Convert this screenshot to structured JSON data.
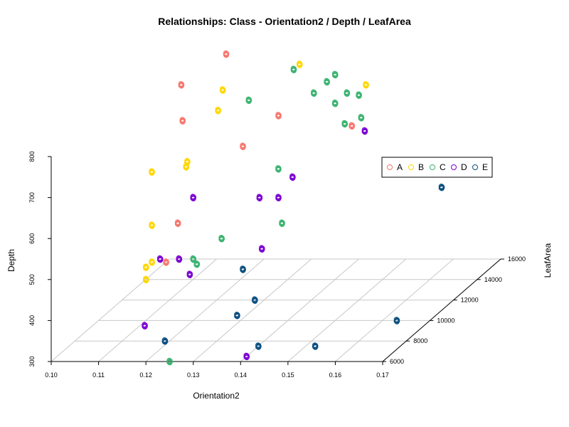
{
  "chart_data": {
    "type": "scatter",
    "title": "Relationships: Class - Orientation2 / Depth / LeafArea",
    "xlabel": "Orientation2",
    "ylabel": "Depth",
    "zlabel": "LeafArea",
    "xlim": [
      0.1,
      0.17
    ],
    "ylim": [
      300,
      800
    ],
    "zlim": [
      6000,
      16000
    ],
    "x_ticks": [
      "0.10",
      "0.11",
      "0.12",
      "0.13",
      "0.14",
      "0.15",
      "0.16",
      "0.17"
    ],
    "y_ticks": [
      "300",
      "400",
      "500",
      "600",
      "700",
      "800"
    ],
    "z_ticks": [
      "6000",
      "8000",
      "10000",
      "12000",
      "14000",
      "16000"
    ],
    "grid": true,
    "legend_position": "right",
    "series": [
      {
        "name": "A",
        "color": "#F8766D",
        "points": [
          [
            0.138,
            10000,
            800
          ],
          [
            0.112,
            16000,
            800
          ],
          [
            0.11,
            13000,
            800
          ],
          [
            0.128,
            11000,
            700
          ],
          [
            0.156,
            9000,
            800
          ],
          [
            0.119,
            9500,
            800
          ],
          [
            0.123,
            7500,
            600
          ],
          [
            0.123,
            6500,
            530
          ]
        ]
      },
      {
        "name": "B",
        "color": "#FFD700",
        "points": [
          [
            0.12,
            12500,
            800
          ],
          [
            0.13,
            15000,
            800
          ],
          [
            0.124,
            10500,
            800
          ],
          [
            0.121,
            9000,
            700
          ],
          [
            0.12,
            9500,
            700
          ],
          [
            0.149,
            13000,
            800
          ],
          [
            0.115,
            8500,
            700
          ],
          [
            0.12,
            6500,
            620
          ],
          [
            0.12,
            6000,
            500
          ],
          [
            0.12,
            6500,
            530
          ],
          [
            0.12,
            6000,
            530
          ]
        ]
      },
      {
        "name": "C",
        "color": "#3CB371",
        "points": [
          [
            0.126,
            10000,
            500
          ],
          [
            0.125,
            8000,
            500
          ],
          [
            0.125,
            6000,
            300
          ],
          [
            0.127,
            7500,
            500
          ],
          [
            0.14,
            9500,
            550
          ],
          [
            0.133,
            12000,
            620
          ],
          [
            0.128,
            11500,
            800
          ],
          [
            0.148,
            13000,
            720
          ],
          [
            0.152,
            10000,
            780
          ],
          [
            0.14,
            14000,
            800
          ],
          [
            0.142,
            12500,
            820
          ],
          [
            0.15,
            12000,
            800
          ],
          [
            0.137,
            16000,
            1000
          ],
          [
            0.13,
            14500,
            800
          ],
          [
            0.138,
            13000,
            780
          ],
          [
            0.14,
            14000,
            730
          ],
          [
            0.14,
            15000,
            730
          ]
        ]
      },
      {
        "name": "D",
        "color": "#7B00D4",
        "points": [
          [
            0.118,
            8000,
            500
          ],
          [
            0.122,
            8000,
            500
          ],
          [
            0.134,
            10000,
            600
          ],
          [
            0.128,
            6500,
            500
          ],
          [
            0.137,
            9000,
            500
          ],
          [
            0.116,
            7500,
            350
          ],
          [
            0.12,
            10000,
            600
          ],
          [
            0.14,
            6500,
            300
          ],
          [
            0.136,
            12000,
            600
          ],
          [
            0.15,
            12500,
            700
          ],
          [
            0.138,
            10000,
            600
          ]
        ]
      },
      {
        "name": "E",
        "color": "#0B4F80",
        "points": [
          [
            0.124,
            6000,
            350
          ],
          [
            0.128,
            11000,
            400
          ],
          [
            0.138,
            8000,
            400
          ],
          [
            0.138,
            6500,
            400
          ],
          [
            0.14,
            7500,
            300
          ],
          [
            0.16,
            15000,
            500
          ],
          [
            0.152,
            7500,
            300
          ],
          [
            0.163,
            10000,
            300
          ]
        ]
      }
    ]
  }
}
